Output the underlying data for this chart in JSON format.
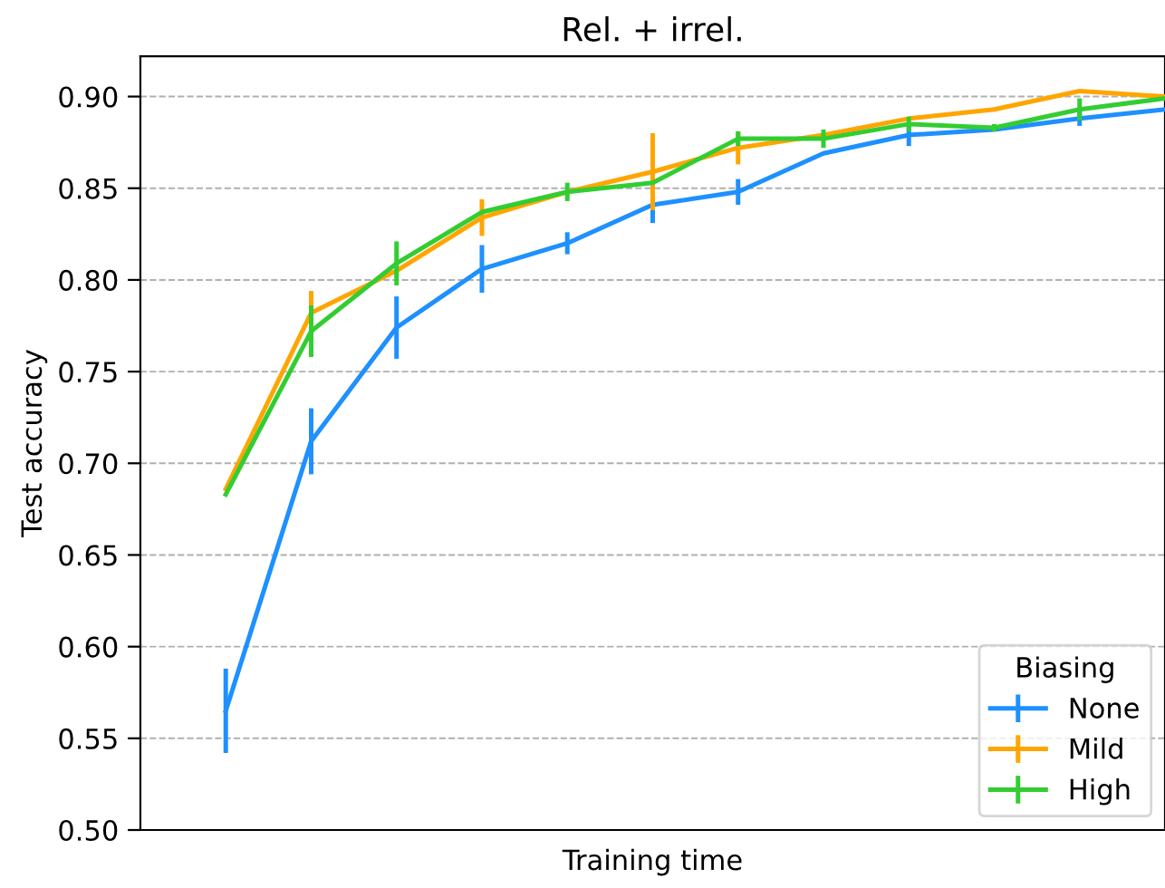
{
  "chart_data": {
    "type": "line",
    "title": "Rel. + irrel.",
    "xlabel": "Training time",
    "ylabel": "Test accuracy",
    "legend_title": "Biasing",
    "categories": [
      null,
      null,
      null,
      null,
      null,
      null,
      null,
      null,
      null,
      null,
      null,
      null,
      null
    ],
    "ylim": [
      0.5,
      0.922
    ],
    "yticks": [
      {
        "value": 0.5,
        "label": "0.50"
      },
      {
        "value": 0.55,
        "label": "0.55"
      },
      {
        "value": 0.6,
        "label": "0.60"
      },
      {
        "value": 0.65,
        "label": "0.65"
      },
      {
        "value": 0.7,
        "label": "0.70"
      },
      {
        "value": 0.75,
        "label": "0.75"
      },
      {
        "value": 0.8,
        "label": "0.80"
      },
      {
        "value": 0.85,
        "label": "0.85"
      },
      {
        "value": 0.9,
        "label": "0.90"
      }
    ],
    "grid": true,
    "legend": "bottom right",
    "series": [
      {
        "name": "None",
        "color": "#1e90ff",
        "values": [
          null,
          0.565,
          0.712,
          0.774,
          0.806,
          0.82,
          0.841,
          0.848,
          0.869,
          0.879,
          0.882,
          0.888,
          0.893
        ],
        "errors": [
          null,
          0.023,
          0.018,
          0.017,
          0.013,
          0.006,
          0.01,
          0.007,
          null,
          0.006,
          null,
          0.004,
          null
        ]
      },
      {
        "name": "Mild",
        "color": "#ffa500",
        "values": [
          null,
          0.686,
          0.782,
          0.805,
          0.834,
          0.848,
          0.859,
          0.872,
          0.879,
          0.888,
          0.893,
          0.903,
          0.9
        ],
        "errors": [
          null,
          null,
          0.012,
          null,
          0.01,
          null,
          0.021,
          0.009,
          null,
          null,
          null,
          null,
          null
        ]
      },
      {
        "name": "High",
        "color": "#32cd32",
        "values": [
          null,
          0.683,
          0.772,
          0.809,
          0.837,
          0.848,
          0.853,
          0.877,
          0.877,
          0.885,
          0.883,
          0.893,
          0.899
        ],
        "errors": [
          null,
          null,
          0.014,
          0.012,
          null,
          0.005,
          null,
          0.004,
          0.005,
          0.004,
          0.002,
          0.006,
          null
        ]
      }
    ]
  }
}
